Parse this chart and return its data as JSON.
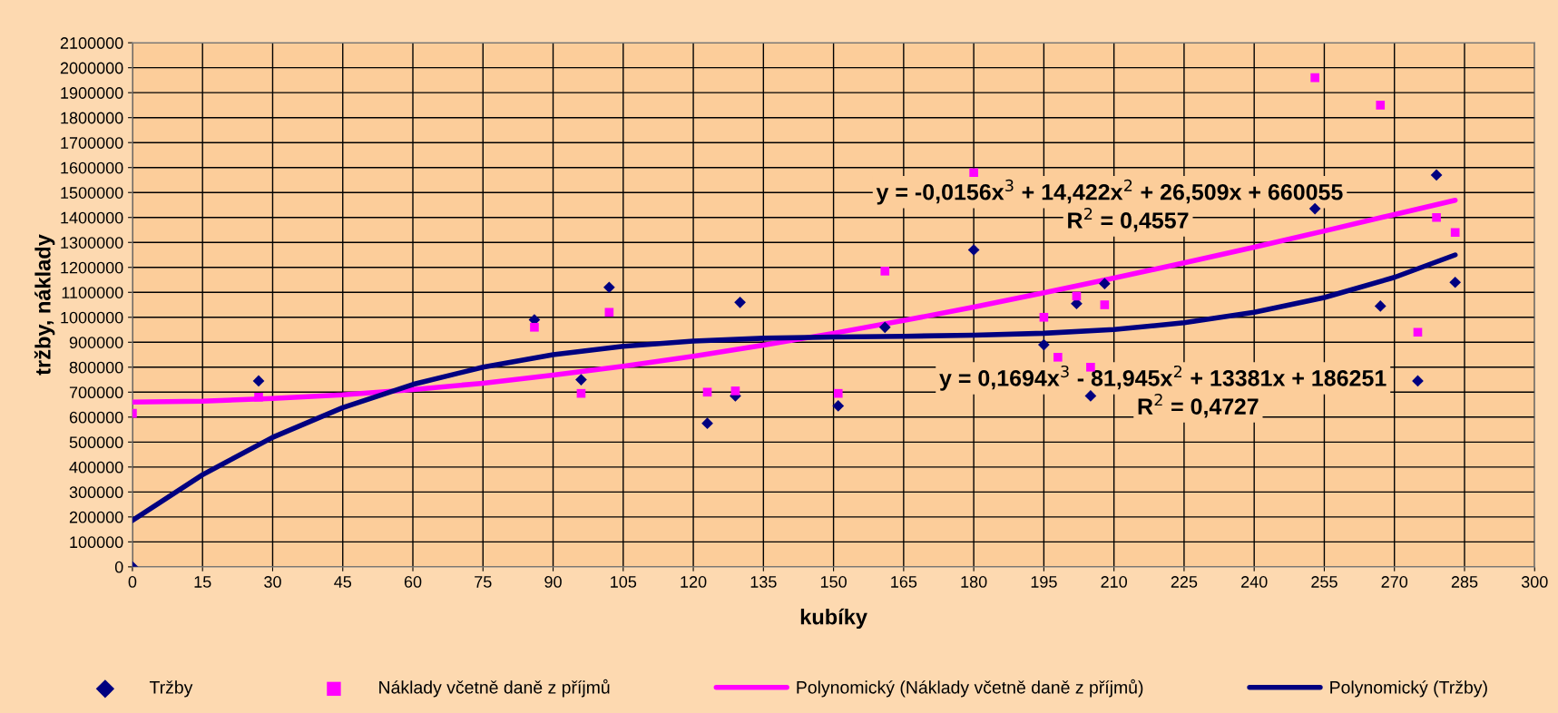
{
  "chart_data": {
    "type": "scatter",
    "xlabel": "kubíky",
    "ylabel": "tržby, náklady",
    "xlim": [
      0,
      300
    ],
    "xticks": [
      0,
      15,
      30,
      45,
      60,
      75,
      90,
      105,
      120,
      135,
      150,
      165,
      180,
      195,
      210,
      225,
      240,
      255,
      270,
      285,
      300
    ],
    "ylim": [
      0,
      2100000
    ],
    "yticks": [
      0,
      100000,
      200000,
      300000,
      400000,
      500000,
      600000,
      700000,
      800000,
      900000,
      1000000,
      1100000,
      1200000,
      1300000,
      1400000,
      1500000,
      1600000,
      1700000,
      1800000,
      1900000,
      2000000,
      2100000
    ],
    "grid": true,
    "legend": "bottom",
    "series": [
      {
        "name": "Tržby",
        "type": "scatter",
        "marker": "diamond",
        "color": "#000080",
        "x": [
          0,
          27,
          86,
          96,
          102,
          123,
          129,
          130,
          151,
          161,
          180,
          195,
          202,
          205,
          208,
          253,
          267,
          275,
          279,
          283
        ],
        "values": [
          0,
          745000,
          990000,
          750000,
          1120000,
          575000,
          685000,
          1060000,
          645000,
          960000,
          1270000,
          890000,
          1055000,
          685000,
          1135000,
          1435000,
          1045000,
          745000,
          1570000,
          1140000
        ]
      },
      {
        "name": "Náklady včetně daně z příjmů",
        "type": "scatter",
        "marker": "square",
        "color": "#ff00ff",
        "x": [
          0,
          27,
          86,
          96,
          102,
          123,
          129,
          151,
          161,
          180,
          195,
          198,
          202,
          205,
          208,
          253,
          267,
          275,
          279,
          283
        ],
        "values": [
          615000,
          680000,
          960000,
          695000,
          1020000,
          700000,
          705000,
          695000,
          1185000,
          1580000,
          1000000,
          840000,
          1085000,
          800000,
          1050000,
          1960000,
          1850000,
          940000,
          1400000,
          1340000
        ]
      },
      {
        "name": "Polynomický (Náklady včetně daně z příjmů)",
        "type": "line",
        "marker": "none",
        "color": "#ff00ff",
        "x": [
          0,
          15,
          30,
          45,
          60,
          75,
          90,
          105,
          120,
          135,
          150,
          165,
          180,
          195,
          210,
          225,
          240,
          255,
          270,
          283
        ],
        "values": [
          660000,
          664000,
          675000,
          689000,
          710000,
          736000,
          768000,
          804000,
          844000,
          888000,
          936000,
          987000,
          1041000,
          1098000,
          1157000,
          1218000,
          1281000,
          1346000,
          1412000,
          1469000
        ]
      },
      {
        "name": "Polynomický (Tržby)",
        "type": "line",
        "marker": "none",
        "color": "#000080",
        "x": [
          0,
          15,
          30,
          45,
          60,
          75,
          90,
          105,
          120,
          135,
          150,
          165,
          180,
          195,
          210,
          225,
          240,
          255,
          270,
          283
        ],
        "values": [
          186000,
          369000,
          519000,
          638000,
          731000,
          800000,
          850000,
          884000,
          905000,
          916000,
          921000,
          924000,
          928000,
          936000,
          951000,
          978000,
          1020000,
          1079000,
          1160000,
          1250000
        ]
      }
    ],
    "annotations": [
      "y = -0,0156x$^{3}$ + 14,422x$^{2}$ + 26,509x + 660055",
      "R$^{2}$ = 0,4557",
      "y = 0,1694x$^{3}$ - 81,945x$^{2}$ + 13381x + 186251",
      "R$^{2}$ = 0,4727"
    ]
  }
}
